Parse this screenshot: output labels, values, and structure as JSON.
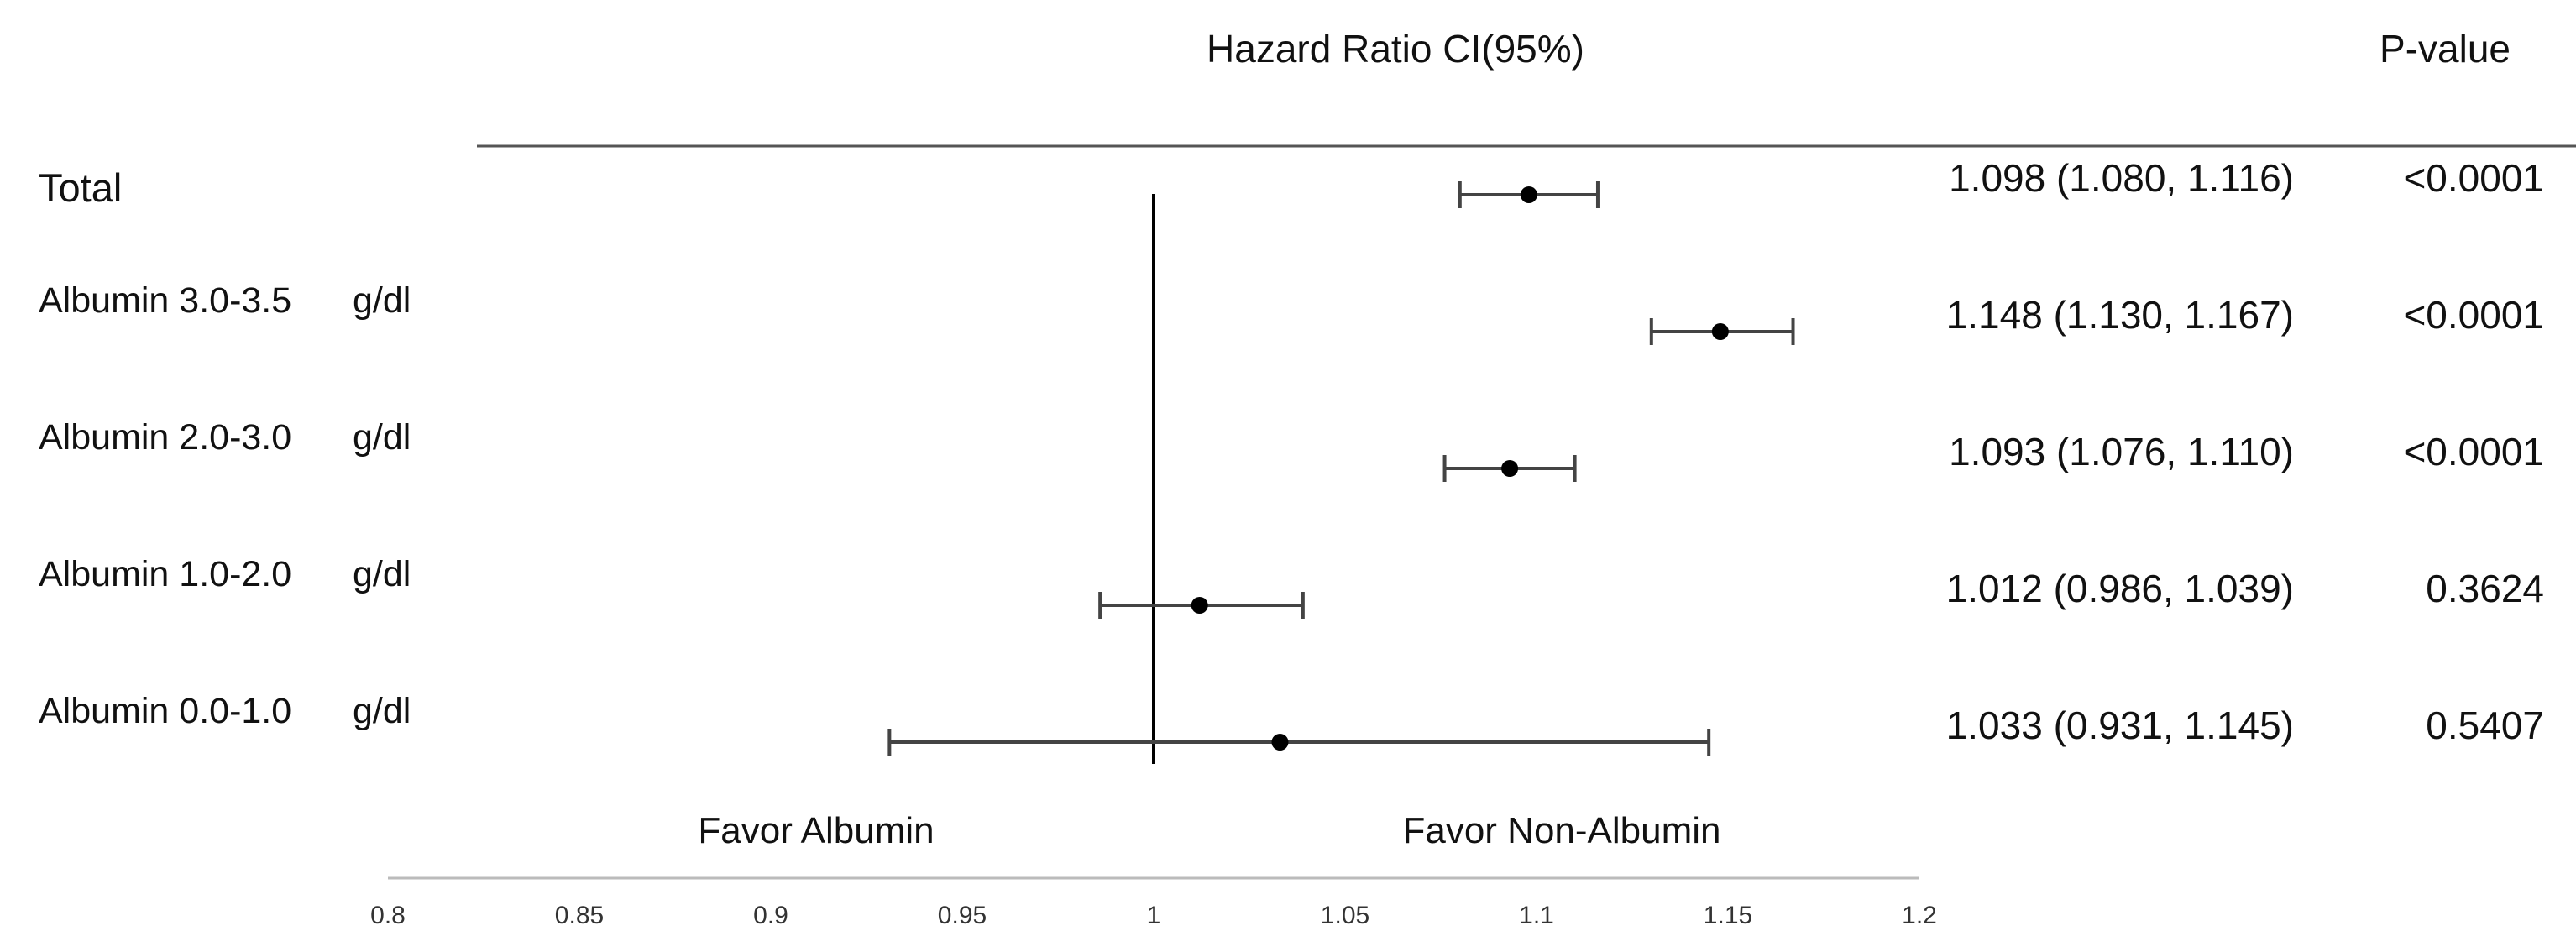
{
  "chart_data": {
    "type": "forest",
    "headers": {
      "estimate": "Hazard Ratio CI(95%)",
      "p_value": "P-value"
    },
    "reference_value": 1,
    "xlim": [
      0.8,
      1.2
    ],
    "x_ticks": [
      {
        "value": 0.8,
        "label": "0.8"
      },
      {
        "value": 0.85,
        "label": "0.85"
      },
      {
        "value": 0.9,
        "label": "0.9"
      },
      {
        "value": 0.95,
        "label": "0.95"
      },
      {
        "value": 1,
        "label": "1"
      },
      {
        "value": 1.05,
        "label": "1.05"
      },
      {
        "value": 1.1,
        "label": "1.1"
      },
      {
        "value": 1.15,
        "label": "1.15"
      },
      {
        "value": 1.2,
        "label": "1.2"
      }
    ],
    "favor_left": "Favor Albumin",
    "favor_right": "Favor Non-Albumin",
    "rows": [
      {
        "label": "Total",
        "unit": "",
        "hr": 1.098,
        "lower": 1.08,
        "upper": 1.116,
        "ci_text": "1.098 (1.080, 1.116)",
        "p": "<0.0001"
      },
      {
        "label": "Albumin 3.0-3.5",
        "unit": "g/dl",
        "hr": 1.148,
        "lower": 1.13,
        "upper": 1.167,
        "ci_text": "1.148 (1.130, 1.167)",
        "p": "<0.0001"
      },
      {
        "label": "Albumin 2.0-3.0",
        "unit": "g/dl",
        "hr": 1.093,
        "lower": 1.076,
        "upper": 1.11,
        "ci_text": "1.093 (1.076, 1.110)",
        "p": "<0.0001"
      },
      {
        "label": "Albumin 1.0-2.0",
        "unit": "g/dl",
        "hr": 1.012,
        "lower": 0.986,
        "upper": 1.039,
        "ci_text": "1.012 (0.986, 1.039)",
        "p": "0.3624"
      },
      {
        "label": "Albumin 0.0-1.0",
        "unit": "g/dl",
        "hr": 1.033,
        "lower": 0.931,
        "upper": 1.145,
        "ci_text": "1.033 (0.931, 1.145)",
        "p": "0.5407"
      }
    ],
    "colors": {
      "marker": "#000000",
      "whisker": "#444444",
      "reference_line": "#000000",
      "header_rule": "#555555",
      "axis": "#bbbbbb"
    }
  }
}
